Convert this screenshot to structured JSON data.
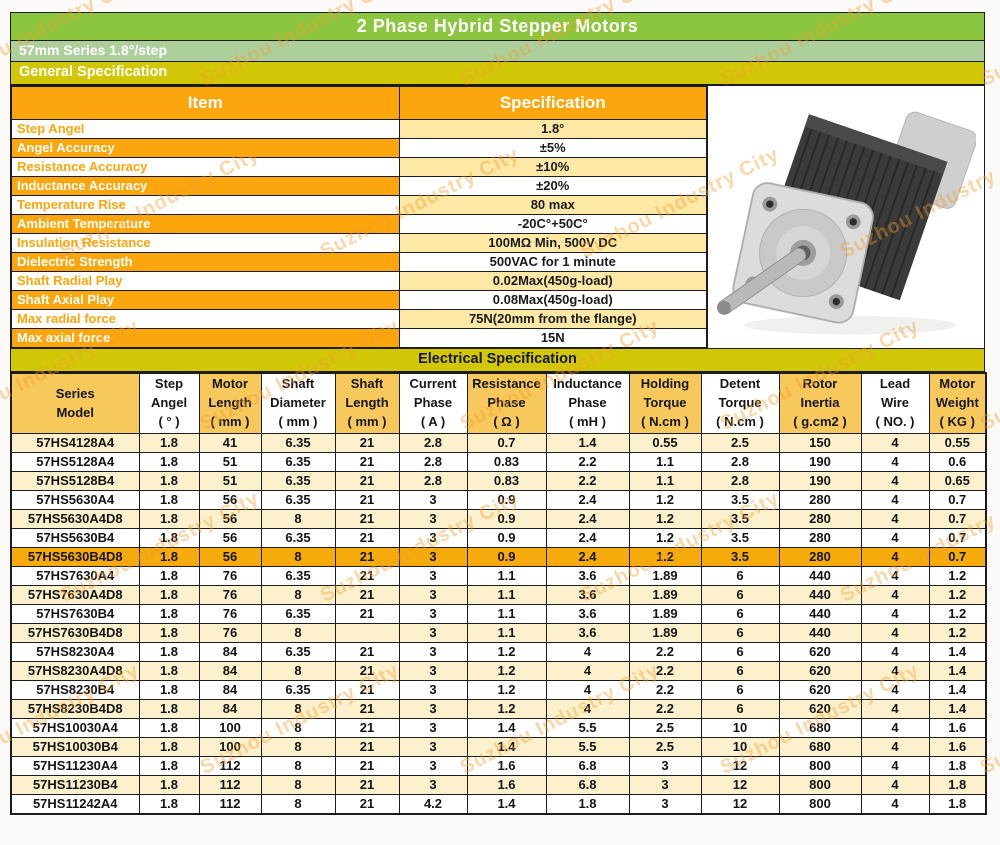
{
  "title": "2 Phase Hybrid Stepper Motors",
  "subtitle": "57mm Series 1.8°/step",
  "sections": {
    "general": "General Specification",
    "electrical": "Electrical Specification"
  },
  "general_table": {
    "headers": {
      "item": "Item",
      "spec": "Specification"
    },
    "rows": [
      {
        "item": "Step Angel",
        "spec": "1.8°"
      },
      {
        "item": "Angel Accuracy",
        "spec": "±5%"
      },
      {
        "item": "Resistance Accuracy",
        "spec": "±10%"
      },
      {
        "item": "Inductance Accuracy",
        "spec": "±20%"
      },
      {
        "item": "Temperature Rise",
        "spec": "80 max"
      },
      {
        "item": "Ambient Temperature",
        "spec": "-20C°+50C°"
      },
      {
        "item": "Insulation Resistance",
        "spec": "100MΩ Min, 500V DC"
      },
      {
        "item": "Dielectric Strength",
        "spec": "500VAC for 1 minute"
      },
      {
        "item": "Shaft Radial Play",
        "spec": "0.02Max(450g-load)"
      },
      {
        "item": "Shaft Axial Play",
        "spec": "0.08Max(450g-load)"
      },
      {
        "item": "Max radial force",
        "spec": "75N(20mm from the flange)"
      },
      {
        "item": "Max axial force",
        "spec": "15N"
      }
    ]
  },
  "electrical_table": {
    "headers": [
      "Series\nModel",
      "Step\nAngel\n( ° )",
      "Motor\nLength\n( mm )",
      "Shaft\nDiameter\n( mm )",
      "Shaft\nLength\n( mm )",
      "Current\nPhase\n( A )",
      "Resistance\nPhase\n( Ω )",
      "Inductance\nPhase\n( mH )",
      "Holding\nTorque\n( N.cm )",
      "Detent\nTorque\n( N.cm )",
      "Rotor\nInertia\n( g.cm2 )",
      "Lead\nWire\n( NO. )",
      "Motor\nWeight\n( KG )"
    ],
    "highlight_row_index": 6,
    "rows": [
      [
        "57HS4128A4",
        "1.8",
        "41",
        "6.35",
        "21",
        "2.8",
        "0.7",
        "1.4",
        "0.55",
        "2.5",
        "150",
        "4",
        "0.55"
      ],
      [
        "57HS5128A4",
        "1.8",
        "51",
        "6.35",
        "21",
        "2.8",
        "0.83",
        "2.2",
        "1.1",
        "2.8",
        "190",
        "4",
        "0.6"
      ],
      [
        "57HS5128B4",
        "1.8",
        "51",
        "6.35",
        "21",
        "2.8",
        "0.83",
        "2.2",
        "1.1",
        "2.8",
        "190",
        "4",
        "0.65"
      ],
      [
        "57HS5630A4",
        "1.8",
        "56",
        "6.35",
        "21",
        "3",
        "0.9",
        "2.4",
        "1.2",
        "3.5",
        "280",
        "4",
        "0.7"
      ],
      [
        "57HS5630A4D8",
        "1.8",
        "56",
        "8",
        "21",
        "3",
        "0.9",
        "2.4",
        "1.2",
        "3.5",
        "280",
        "4",
        "0.7"
      ],
      [
        "57HS5630B4",
        "1.8",
        "56",
        "6.35",
        "21",
        "3",
        "0.9",
        "2.4",
        "1.2",
        "3.5",
        "280",
        "4",
        "0.7"
      ],
      [
        "57HS5630B4D8",
        "1.8",
        "56",
        "8",
        "21",
        "3",
        "0.9",
        "2.4",
        "1.2",
        "3.5",
        "280",
        "4",
        "0.7"
      ],
      [
        "57HS7630A4",
        "1.8",
        "76",
        "6.35",
        "21",
        "3",
        "1.1",
        "3.6",
        "1.89",
        "6",
        "440",
        "4",
        "1.2"
      ],
      [
        "57HS7630A4D8",
        "1.8",
        "76",
        "8",
        "21",
        "3",
        "1.1",
        "3.6",
        "1.89",
        "6",
        "440",
        "4",
        "1.2"
      ],
      [
        "57HS7630B4",
        "1.8",
        "76",
        "6.35",
        "21",
        "3",
        "1.1",
        "3.6",
        "1.89",
        "6",
        "440",
        "4",
        "1.2"
      ],
      [
        "57HS7630B4D8",
        "1.8",
        "76",
        "8",
        "",
        "3",
        "1.1",
        "3.6",
        "1.89",
        "6",
        "440",
        "4",
        "1.2"
      ],
      [
        "57HS8230A4",
        "1.8",
        "84",
        "6.35",
        "21",
        "3",
        "1.2",
        "4",
        "2.2",
        "6",
        "620",
        "4",
        "1.4"
      ],
      [
        "57HS8230A4D8",
        "1.8",
        "84",
        "8",
        "21",
        "3",
        "1.2",
        "4",
        "2.2",
        "6",
        "620",
        "4",
        "1.4"
      ],
      [
        "57HS8230B4",
        "1.8",
        "84",
        "6.35",
        "21",
        "3",
        "1.2",
        "4",
        "2.2",
        "6",
        "620",
        "4",
        "1.4"
      ],
      [
        "57HS8230B4D8",
        "1.8",
        "84",
        "8",
        "21",
        "3",
        "1.2",
        "4",
        "2.2",
        "6",
        "620",
        "4",
        "1.4"
      ],
      [
        "57HS10030A4",
        "1.8",
        "100",
        "8",
        "21",
        "3",
        "1.4",
        "5.5",
        "2.5",
        "10",
        "680",
        "4",
        "1.6"
      ],
      [
        "57HS10030B4",
        "1.8",
        "100",
        "8",
        "21",
        "3",
        "1.4",
        "5.5",
        "2.5",
        "10",
        "680",
        "4",
        "1.6"
      ],
      [
        "57HS11230A4",
        "1.8",
        "112",
        "8",
        "21",
        "3",
        "1.6",
        "6.8",
        "3",
        "12",
        "800",
        "4",
        "1.8"
      ],
      [
        "57HS11230B4",
        "1.8",
        "112",
        "8",
        "21",
        "3",
        "1.6",
        "6.8",
        "3",
        "12",
        "800",
        "4",
        "1.8"
      ],
      [
        "57HS11242A4",
        "1.8",
        "112",
        "8",
        "21",
        "4.2",
        "1.4",
        "1.8",
        "3",
        "12",
        "800",
        "4",
        "1.8"
      ]
    ]
  },
  "watermark": "Suzhou Industry City",
  "colors": {
    "title_bar": "#8cc63e",
    "subtitle_bar": "#adcf9c",
    "section_bar": "#d2c707",
    "orange": "#fba60d",
    "spec_cream": "#fee8a5",
    "header_amber": "#f7c85b",
    "row_cream": "#fcf1cc",
    "highlight": "#f5ab0b",
    "watermark": "#f49d2b"
  }
}
